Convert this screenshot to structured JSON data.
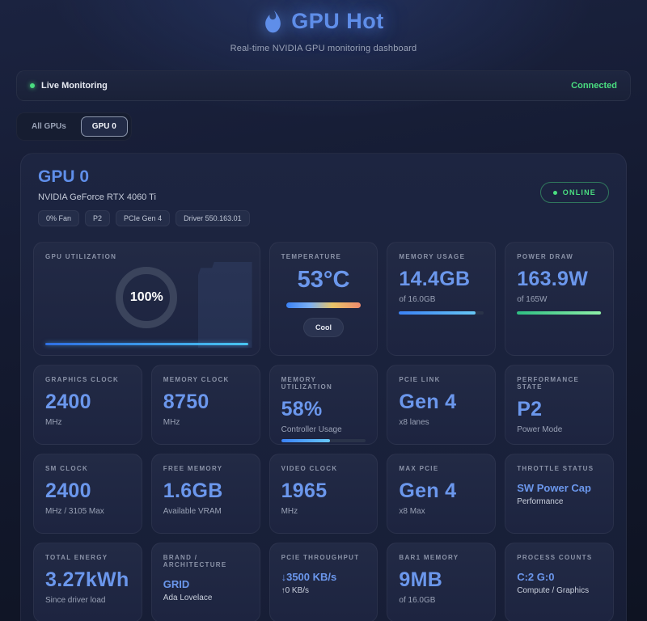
{
  "theme": {
    "accent_blue": "#6b97ec",
    "green": "#4ade80",
    "ring_gray": "#3b445c"
  },
  "header": {
    "title": "GPU Hot",
    "subtitle": "Real-time NVIDIA GPU monitoring dashboard"
  },
  "status_bar": {
    "label": "Live Monitoring",
    "connection": "Connected"
  },
  "tabs": [
    {
      "label": "All GPUs",
      "active": false
    },
    {
      "label": "GPU 0",
      "active": true
    }
  ],
  "gpu": {
    "title": "GPU 0",
    "model": "NVIDIA GeForce RTX 4060 Ti",
    "badges": [
      "0% Fan",
      "P2",
      "PCIe Gen 4",
      "Driver 550.163.01"
    ],
    "online": "ONLINE"
  },
  "hero": {
    "utilization": {
      "label": "GPU UTILIZATION",
      "value": "100%",
      "bar_pct": 100
    },
    "temperature": {
      "label": "TEMPERATURE",
      "value": "53°C",
      "status": "Cool"
    },
    "memory": {
      "label": "MEMORY USAGE",
      "value": "14.4GB",
      "sub": "of 16.0GB",
      "bar_pct": 90
    },
    "power": {
      "label": "POWER DRAW",
      "value": "163.9W",
      "sub": "of 165W",
      "bar_pct": 99
    }
  },
  "stats": [
    {
      "label": "GRAPHICS CLOCK",
      "value": "2400",
      "sub": "MHz"
    },
    {
      "label": "MEMORY CLOCK",
      "value": "8750",
      "sub": "MHz"
    },
    {
      "label": "MEMORY UTILIZATION",
      "value": "58%",
      "sub": "Controller Usage",
      "bar_pct": 58
    },
    {
      "label": "PCIE LINK",
      "value": "Gen 4",
      "sub": "x8 lanes"
    },
    {
      "label": "PERFORMANCE STATE",
      "value": "P2",
      "sub": "Power Mode"
    },
    {
      "label": "SM CLOCK",
      "value": "2400",
      "sub": "MHz / 3105 Max"
    },
    {
      "label": "FREE MEMORY",
      "value": "1.6GB",
      "sub": "Available VRAM"
    },
    {
      "label": "VIDEO CLOCK",
      "value": "1965",
      "sub": "MHz"
    },
    {
      "label": "MAX PCIE",
      "value": "Gen 4",
      "sub": "x8 Max"
    },
    {
      "label": "THROTTLE STATUS",
      "value": "SW Power Cap",
      "sub": "Performance"
    },
    {
      "label": "TOTAL ENERGY",
      "value": "3.27kWh",
      "sub": "Since driver load"
    },
    {
      "label": "BRAND / ARCHITECTURE",
      "value": "GRID",
      "sub": "Ada Lovelace"
    },
    {
      "label": "PCIE THROUGHPUT",
      "value": "↓3500 KB/s",
      "sub": "↑0 KB/s"
    },
    {
      "label": "BAR1 MEMORY",
      "value": "9MB",
      "sub": "of 16.0GB"
    },
    {
      "label": "PROCESS COUNTS",
      "value": "C:2 G:0",
      "sub": "Compute / Graphics"
    }
  ]
}
